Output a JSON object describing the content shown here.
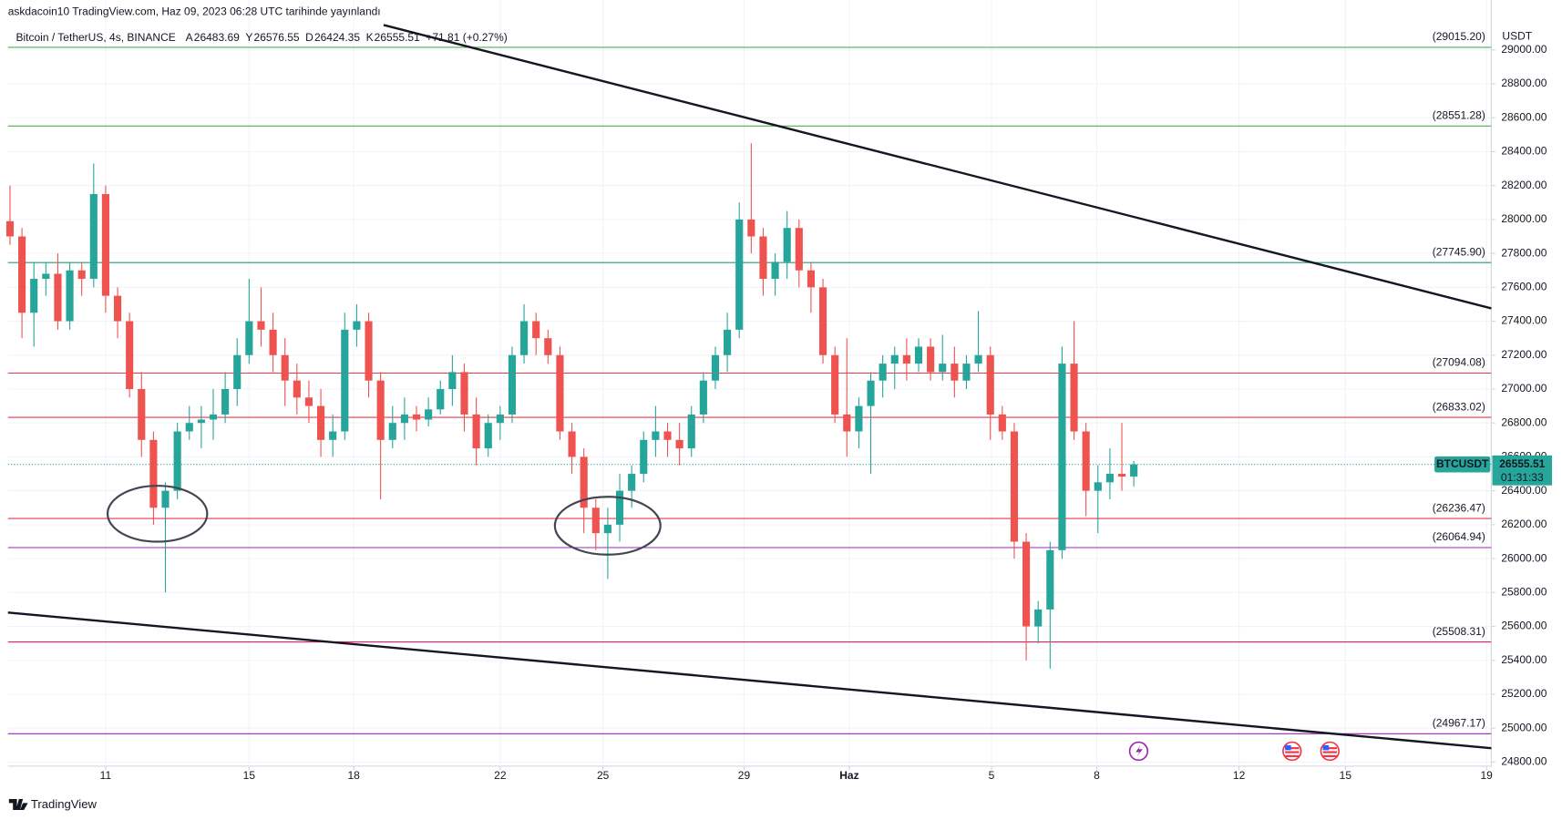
{
  "chart_data": {
    "type": "candlestick",
    "published": "askdacoin10 TradingView.com, Haz 09, 2023 06:28 UTC tarihinde yayınlandı",
    "symbol": "Bitcoin / TetherUS, 4s, BINANCE",
    "ohlc_labels": [
      "A",
      "Y",
      "D",
      "K"
    ],
    "change": "+71.81 (+0.27%)",
    "currency": "USDT",
    "ticker": "BTCUSDT",
    "countdown": "01:31:33",
    "brand": "TradingView",
    "up_color": "#26a69a",
    "down_color": "#ef5350",
    "grid": true,
    "open": [
      27990,
      27900,
      27450,
      27650,
      27680,
      27400,
      27700,
      27650,
      28150,
      27550,
      27400,
      27000,
      26700,
      26300,
      26400,
      26750,
      26800,
      26820,
      26850,
      27000,
      27200,
      27400,
      27350,
      27200,
      27050,
      26950,
      26900,
      26700,
      26750,
      27350,
      27400,
      27050,
      26700,
      26800,
      26850,
      26820,
      26880,
      27000,
      27100,
      26850,
      26650,
      26800,
      26850,
      27200,
      27400,
      27300,
      27200,
      26750,
      26600,
      26300,
      26150,
      26200,
      26400,
      26500,
      26700,
      26750,
      26700,
      26650,
      26850,
      27050,
      27200,
      27350,
      28000,
      27900,
      27650,
      27750,
      27950,
      27700,
      27600,
      27200,
      26850,
      26750,
      26900,
      27050,
      27150,
      27200,
      27150,
      27250,
      27100,
      27150,
      27050,
      27150,
      27200,
      26850,
      26750,
      26100,
      25600,
      25700,
      26050,
      27150,
      26750,
      26400,
      26450,
      26500,
      26483.69
    ],
    "high": [
      28200,
      27950,
      27750,
      27750,
      27800,
      27750,
      27750,
      28330,
      28200,
      27600,
      27450,
      27100,
      26750,
      26450,
      26800,
      26900,
      26900,
      27000,
      27100,
      27300,
      27650,
      27600,
      27450,
      27300,
      27150,
      27050,
      27000,
      26850,
      27450,
      27500,
      27450,
      27100,
      26900,
      26950,
      26900,
      26950,
      27050,
      27200,
      27150,
      26950,
      26850,
      26900,
      27250,
      27500,
      27450,
      27350,
      27250,
      26800,
      26650,
      26350,
      26300,
      26500,
      26550,
      26750,
      26900,
      26800,
      26800,
      26900,
      27100,
      27250,
      27450,
      28100,
      28450,
      27950,
      27800,
      28050,
      28000,
      27750,
      27650,
      27250,
      27300,
      26950,
      27100,
      27200,
      27250,
      27300,
      27300,
      27300,
      27320,
      27250,
      27200,
      27460,
      27250,
      26900,
      26800,
      26150,
      25750,
      26100,
      27250,
      27400,
      26800,
      26550,
      26650,
      26800,
      26576.55
    ],
    "low": [
      27850,
      27300,
      27250,
      27550,
      27350,
      27350,
      27550,
      27600,
      27450,
      27300,
      26950,
      26600,
      26200,
      25800,
      26350,
      26700,
      26650,
      26700,
      26800,
      26900,
      27150,
      27250,
      27100,
      26900,
      26850,
      26800,
      26600,
      26600,
      26700,
      27250,
      26950,
      26350,
      26650,
      26700,
      26750,
      26780,
      26850,
      26900,
      26750,
      26550,
      26600,
      26700,
      26800,
      27150,
      27200,
      27150,
      26700,
      26500,
      26150,
      26050,
      25880,
      26100,
      26300,
      26450,
      26600,
      26600,
      26550,
      26600,
      26800,
      27000,
      27100,
      27300,
      27800,
      27550,
      27550,
      27650,
      27600,
      27450,
      27150,
      26800,
      26600,
      26650,
      26500,
      26950,
      27000,
      27050,
      27100,
      27050,
      27050,
      26950,
      27000,
      27100,
      26700,
      26700,
      26000,
      25400,
      25500,
      25350,
      26000,
      26700,
      26250,
      26150,
      26350,
      26400,
      26424.35
    ],
    "close": [
      27900,
      27450,
      27650,
      27680,
      27400,
      27700,
      27650,
      28150,
      27550,
      27400,
      27000,
      26700,
      26300,
      26400,
      26750,
      26800,
      26820,
      26850,
      27000,
      27200,
      27400,
      27350,
      27200,
      27050,
      26950,
      26900,
      26700,
      26750,
      27350,
      27400,
      27050,
      26700,
      26800,
      26850,
      26820,
      26880,
      27000,
      27100,
      26850,
      26650,
      26800,
      26850,
      27200,
      27400,
      27300,
      27200,
      26750,
      26600,
      26300,
      26150,
      26200,
      26400,
      26500,
      26700,
      26750,
      26700,
      26650,
      26850,
      27050,
      27200,
      27350,
      28000,
      27900,
      27650,
      27750,
      27950,
      27700,
      27600,
      27200,
      26850,
      26750,
      26900,
      27050,
      27150,
      27200,
      27150,
      27250,
      27100,
      27150,
      27050,
      27150,
      27200,
      26850,
      26750,
      26100,
      25600,
      25700,
      26050,
      27150,
      26750,
      26400,
      26450,
      26500,
      26483.69,
      26555.51
    ],
    "xlim": [
      -0.17,
      123.9
    ],
    "ylim": [
      24776,
      29118
    ],
    "xticks": [
      {
        "value": 8,
        "label": "11"
      },
      {
        "value": 20,
        "label": "15"
      },
      {
        "value": 28.75,
        "label": "18"
      },
      {
        "value": 41,
        "label": "22"
      },
      {
        "value": 49.6,
        "label": "25"
      },
      {
        "value": 61.4,
        "label": "29"
      },
      {
        "value": 70.2,
        "label": "Haz"
      },
      {
        "value": 82.1,
        "label": "5"
      },
      {
        "value": 90.9,
        "label": "8"
      },
      {
        "value": 102.8,
        "label": "12"
      },
      {
        "value": 111.7,
        "label": "15"
      },
      {
        "value": 123.5,
        "label": "19"
      }
    ],
    "yticks": [
      {
        "value": 24800,
        "label": "24800.00"
      },
      {
        "value": 25000,
        "label": "25000.00"
      },
      {
        "value": 25200,
        "label": "25200.00"
      },
      {
        "value": 25400,
        "label": "25400.00"
      },
      {
        "value": 25600,
        "label": "25600.00"
      },
      {
        "value": 25800,
        "label": "25800.00"
      },
      {
        "value": 26000,
        "label": "26000.00"
      },
      {
        "value": 26200,
        "label": "26200.00"
      },
      {
        "value": 26400,
        "label": "26400.00"
      },
      {
        "value": 26600,
        "label": "26600.00"
      },
      {
        "value": 26800,
        "label": "26800.00"
      },
      {
        "value": 27000,
        "label": "27000.00"
      },
      {
        "value": 27200,
        "label": "27200.00"
      },
      {
        "value": 27400,
        "label": "27400.00"
      },
      {
        "value": 27600,
        "label": "27600.00"
      },
      {
        "value": 27800,
        "label": "27800.00"
      },
      {
        "value": 28000,
        "label": "28000.00"
      },
      {
        "value": 28200,
        "label": "28200.00"
      },
      {
        "value": 28400,
        "label": "28400.00"
      },
      {
        "value": 28600,
        "label": "28600.00"
      },
      {
        "value": 28800,
        "label": "28800.00"
      },
      {
        "value": 29000,
        "label": "29000.00"
      }
    ],
    "levels": [
      {
        "value": 29015.2,
        "label": "(29015.20)",
        "color": "#4caf50"
      },
      {
        "value": 28551.28,
        "label": "(28551.28)",
        "color": "#4caf50"
      },
      {
        "value": 27745.9,
        "label": "(27745.90)",
        "color": "#1e9e74"
      },
      {
        "value": 27094.08,
        "label": "(27094.08)",
        "color": "#f23645"
      },
      {
        "value": 26833.02,
        "label": "(26833.02)",
        "color": "#f23645"
      },
      {
        "value": 26236.47,
        "label": "(26236.47)",
        "color": "#f23645"
      },
      {
        "value": 26064.94,
        "label": "(26064.94)",
        "color": "#9c27b0"
      },
      {
        "value": 25508.31,
        "label": "(25508.31)",
        "color": "#e91e63"
      },
      {
        "value": 24967.17,
        "label": "(24967.17)",
        "color": "#9c27b0"
      }
    ],
    "trendlines": [
      {
        "x": [
          31.25,
          123.9
        ],
        "y": [
          29147,
          27476
        ]
      },
      {
        "x": [
          -0.17,
          123.9
        ],
        "y": [
          25682,
          24882
        ]
      }
    ]
  }
}
